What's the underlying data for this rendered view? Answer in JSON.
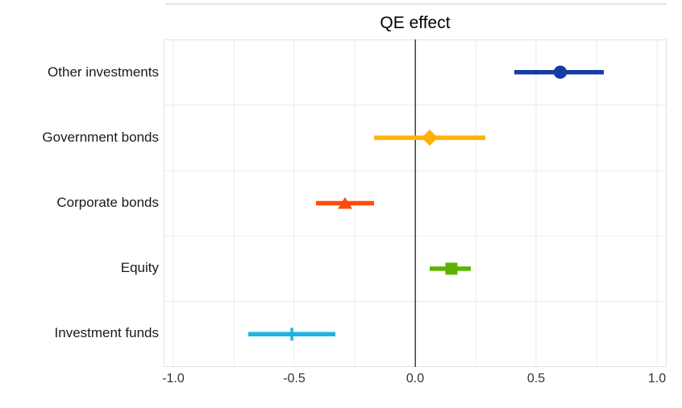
{
  "chart_data": {
    "type": "scatter",
    "subtype": "coefficient-plot-with-error-bars",
    "title": "QE effect",
    "xlabel": "",
    "ylabel": "",
    "categories": [
      "Other investments",
      "Government bonds",
      "Corporate bonds",
      "Equity",
      "Investment funds"
    ],
    "series": [
      {
        "name": "Other investments",
        "estimate": 0.6,
        "ci_low": 0.41,
        "ci_high": 0.78,
        "marker": "circle",
        "color": "#143CA3"
      },
      {
        "name": "Government bonds",
        "estimate": 0.06,
        "ci_low": -0.17,
        "ci_high": 0.29,
        "marker": "diamond",
        "color": "#FFB300"
      },
      {
        "name": "Corporate bonds",
        "estimate": -0.29,
        "ci_low": -0.41,
        "ci_high": -0.17,
        "marker": "triangle-up",
        "color": "#FF4B0C"
      },
      {
        "name": "Equity",
        "estimate": 0.15,
        "ci_low": 0.06,
        "ci_high": 0.23,
        "marker": "square",
        "color": "#5CB400"
      },
      {
        "name": "Investment funds",
        "estimate": -0.51,
        "ci_low": -0.69,
        "ci_high": -0.33,
        "marker": "vline",
        "color": "#20B2E3"
      }
    ],
    "xlim": [
      -1.04,
      1.04
    ],
    "x_ticks": [
      -1.0,
      -0.5,
      0.0,
      0.5,
      1.0
    ],
    "x_tick_labels": [
      "-1.0",
      "-0.5",
      "0.0",
      "0.5",
      "1.0"
    ],
    "x_minor_grid_step": 0.25,
    "grid": "on",
    "zero_line": true,
    "legend": "none",
    "colors": {
      "grid": "#ebebeb",
      "panel_border": "#e3e3e3",
      "zero_line": "#3f3f3f",
      "title_text": "#000000",
      "category_text": "#1a1a1a",
      "tick_text": "#333333",
      "background": "#ffffff"
    }
  }
}
